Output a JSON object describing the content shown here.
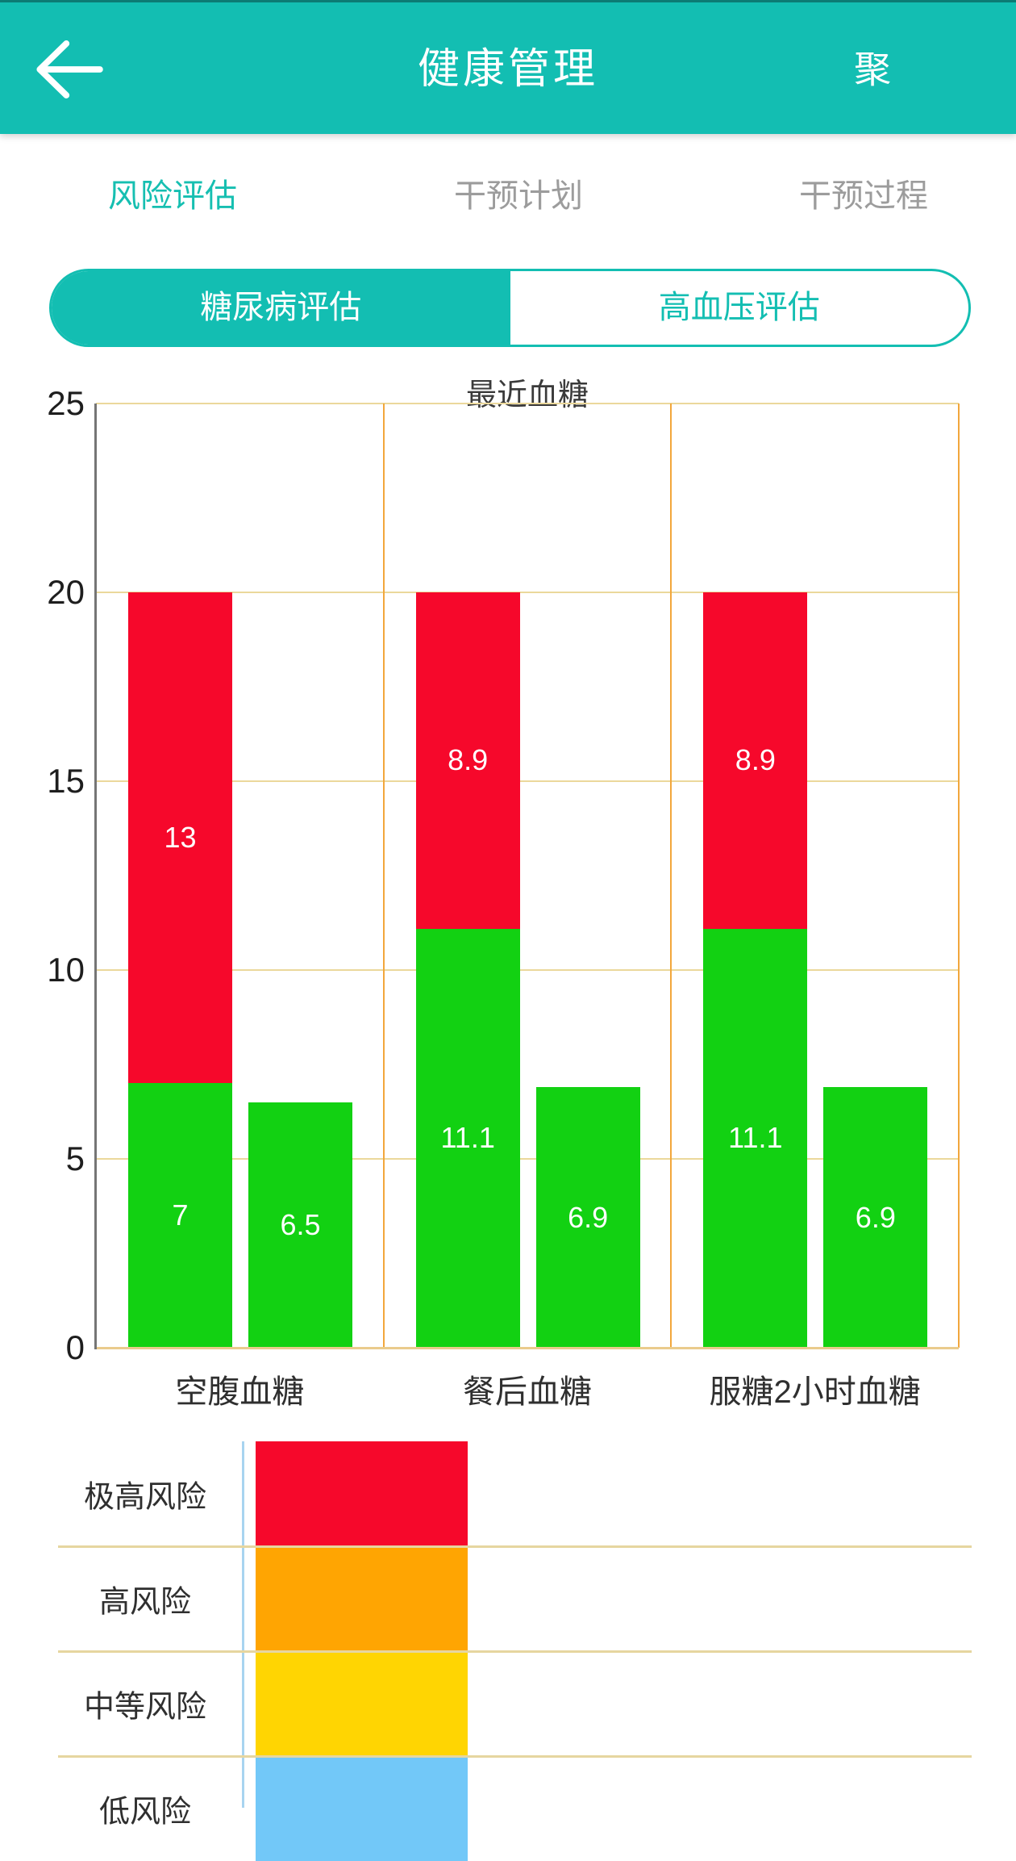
{
  "header": {
    "title": "健康管理",
    "action_label": "聚",
    "back_icon": "arrow-left-icon"
  },
  "tabs": [
    {
      "id": "risk-assessment",
      "label": "风险评估",
      "active": true
    },
    {
      "id": "intervention-plan",
      "label": "干预计划",
      "active": false
    },
    {
      "id": "intervention-process",
      "label": "干预过程",
      "active": false
    }
  ],
  "segments": [
    {
      "id": "diabetes-assessment",
      "label": "糖尿病评估",
      "active": true
    },
    {
      "id": "hypertension-assessment",
      "label": "高血压评估",
      "active": false
    }
  ],
  "chart_data": {
    "type": "bar",
    "title": "最近血糖",
    "categories": [
      "空腹血糖",
      "餐后血糖",
      "服糖2小时血糖"
    ],
    "series": [
      {
        "name": "stack-bottom-green",
        "values": [
          7,
          11.1,
          11.1
        ],
        "color": "#12D112"
      },
      {
        "name": "stack-top-red",
        "values": [
          13,
          8.9,
          8.9
        ],
        "color": "#F6082B"
      },
      {
        "name": "side-bar-green",
        "values": [
          6.5,
          6.9,
          6.9
        ],
        "color": "#12D112"
      }
    ],
    "ylim": [
      0,
      25
    ],
    "yticks": [
      0,
      5,
      10,
      15,
      20,
      25
    ],
    "grid": true,
    "legend_position": "none"
  },
  "risk_scale": {
    "levels": [
      {
        "id": "extreme-high-risk",
        "label": "极高风险",
        "color": "#F6082B"
      },
      {
        "id": "high-risk",
        "label": "高风险",
        "color": "#FFA502"
      },
      {
        "id": "medium-risk",
        "label": "中等风险",
        "color": "#FFD502"
      },
      {
        "id": "low-risk",
        "label": "低风险",
        "color": "#72C8F8"
      }
    ]
  },
  "colors": {
    "accent_teal": "#13BEB2",
    "inactive_gray": "#9C9C9C",
    "grid_tan": "#EBD89B",
    "grid_orange": "#F2A73C",
    "axis_gray": "#757575",
    "risk_axis_blue": "#A8D4F0",
    "bar_red": "#F6082B",
    "bar_green": "#12D112"
  }
}
